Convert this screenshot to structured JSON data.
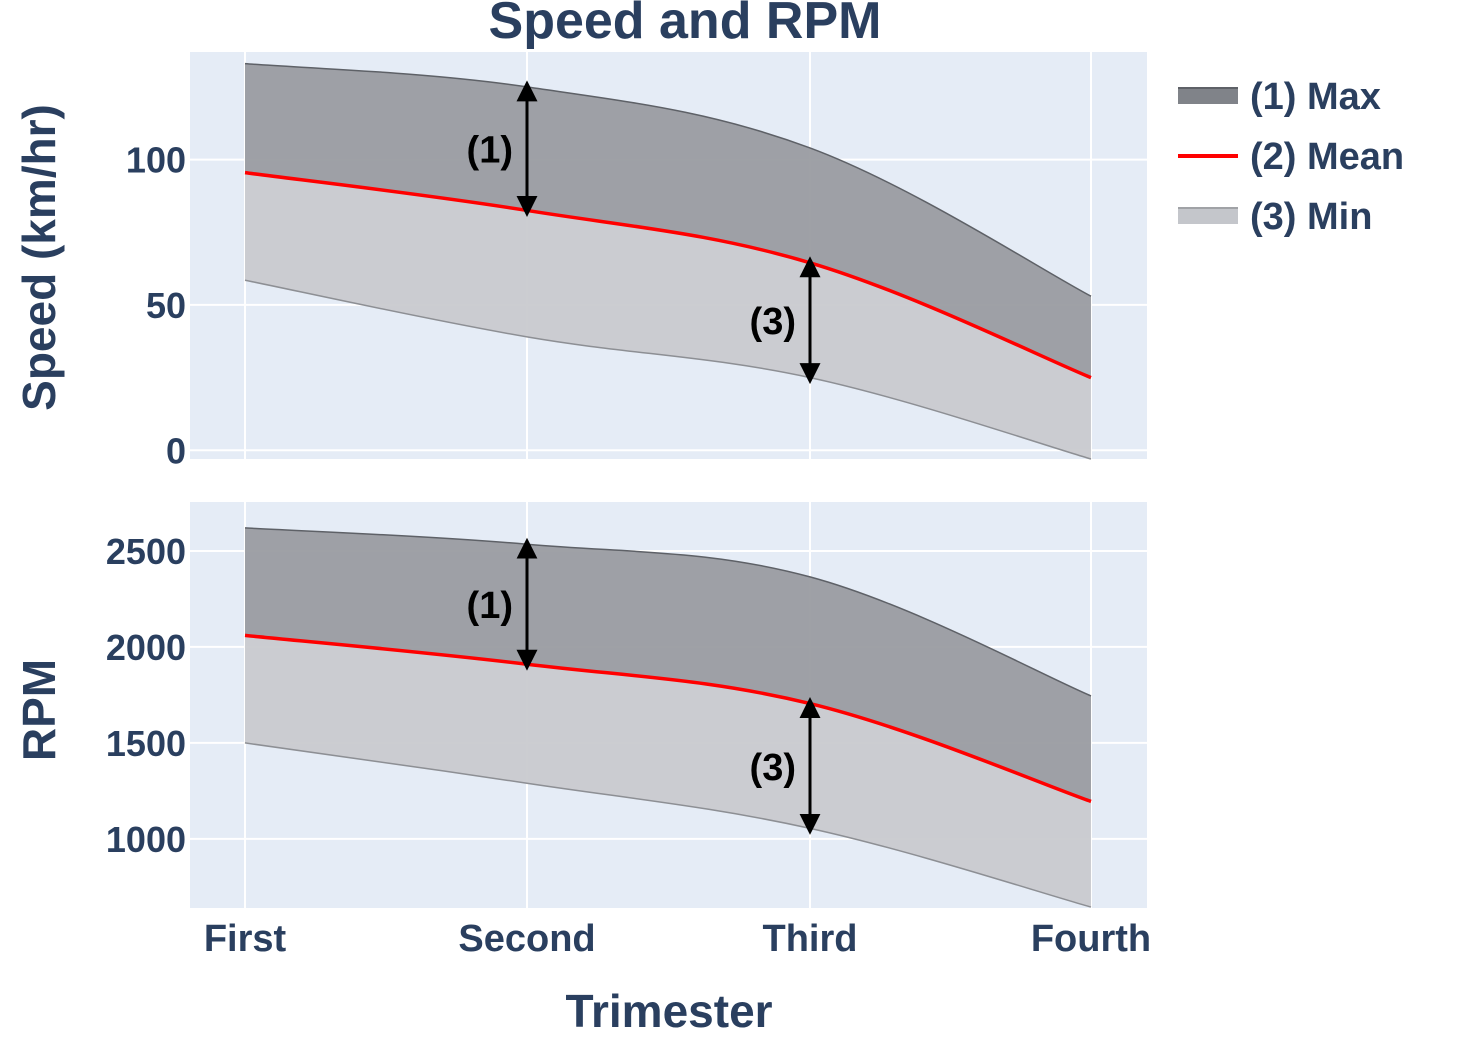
{
  "chart_data": {
    "type": "area",
    "title": "Speed and RPM",
    "xlabel": "Trimester",
    "categories": [
      "First",
      "Second",
      "Third",
      "Fourth"
    ],
    "legend": {
      "placement": "top-right",
      "entries": [
        {
          "label": "(1) Max",
          "color": "#808389"
        },
        {
          "label": "(2) Mean",
          "color": "#ff0000"
        },
        {
          "label": "(3) Min",
          "color": "#c4c6cb"
        }
      ]
    },
    "colors": {
      "plot_bg": "#e5ecf6",
      "grid": "#ffffff",
      "text": "#2a3f5f",
      "max_fill": "#9a9ca1",
      "min_fill": "#c9cacf",
      "mean_line": "#ff0000",
      "arrow": "#000000"
    },
    "panels": [
      {
        "name": "speed",
        "ylabel": "Speed (km/hr)",
        "ylim": [
          -3,
          137
        ],
        "yticks": [
          0,
          50,
          100
        ],
        "grid": true,
        "series": [
          {
            "name": "(1) Max",
            "values": [
              133,
              125,
              104,
              53
            ]
          },
          {
            "name": "(2) Mean",
            "values": [
              95.5,
              82.5,
              64.5,
              25
            ]
          },
          {
            "name": "(3) Min",
            "values": [
              58.5,
              39,
              25,
              -3
            ]
          }
        ],
        "annotations": [
          {
            "text": "(1)",
            "category": "Second",
            "from": 82.5,
            "to": 125
          },
          {
            "text": "(3)",
            "category": "Third",
            "from": 25,
            "to": 64.5
          }
        ]
      },
      {
        "name": "rpm",
        "ylabel": "RPM",
        "ylim": [
          640,
          2755
        ],
        "yticks": [
          1000,
          1500,
          2000,
          2500
        ],
        "grid": true,
        "series": [
          {
            "name": "(1) Max",
            "values": [
              2620,
              2535,
              2365,
              1745
            ]
          },
          {
            "name": "(2) Mean",
            "values": [
              2060,
              1910,
              1705,
              1195
            ]
          },
          {
            "name": "(3) Min",
            "values": [
              1500,
              1290,
              1055,
              645
            ]
          }
        ],
        "annotations": [
          {
            "text": "(1)",
            "category": "Second",
            "from": 1910,
            "to": 2535
          },
          {
            "text": "(3)",
            "category": "Third",
            "from": 1055,
            "to": 1705
          }
        ]
      }
    ]
  }
}
